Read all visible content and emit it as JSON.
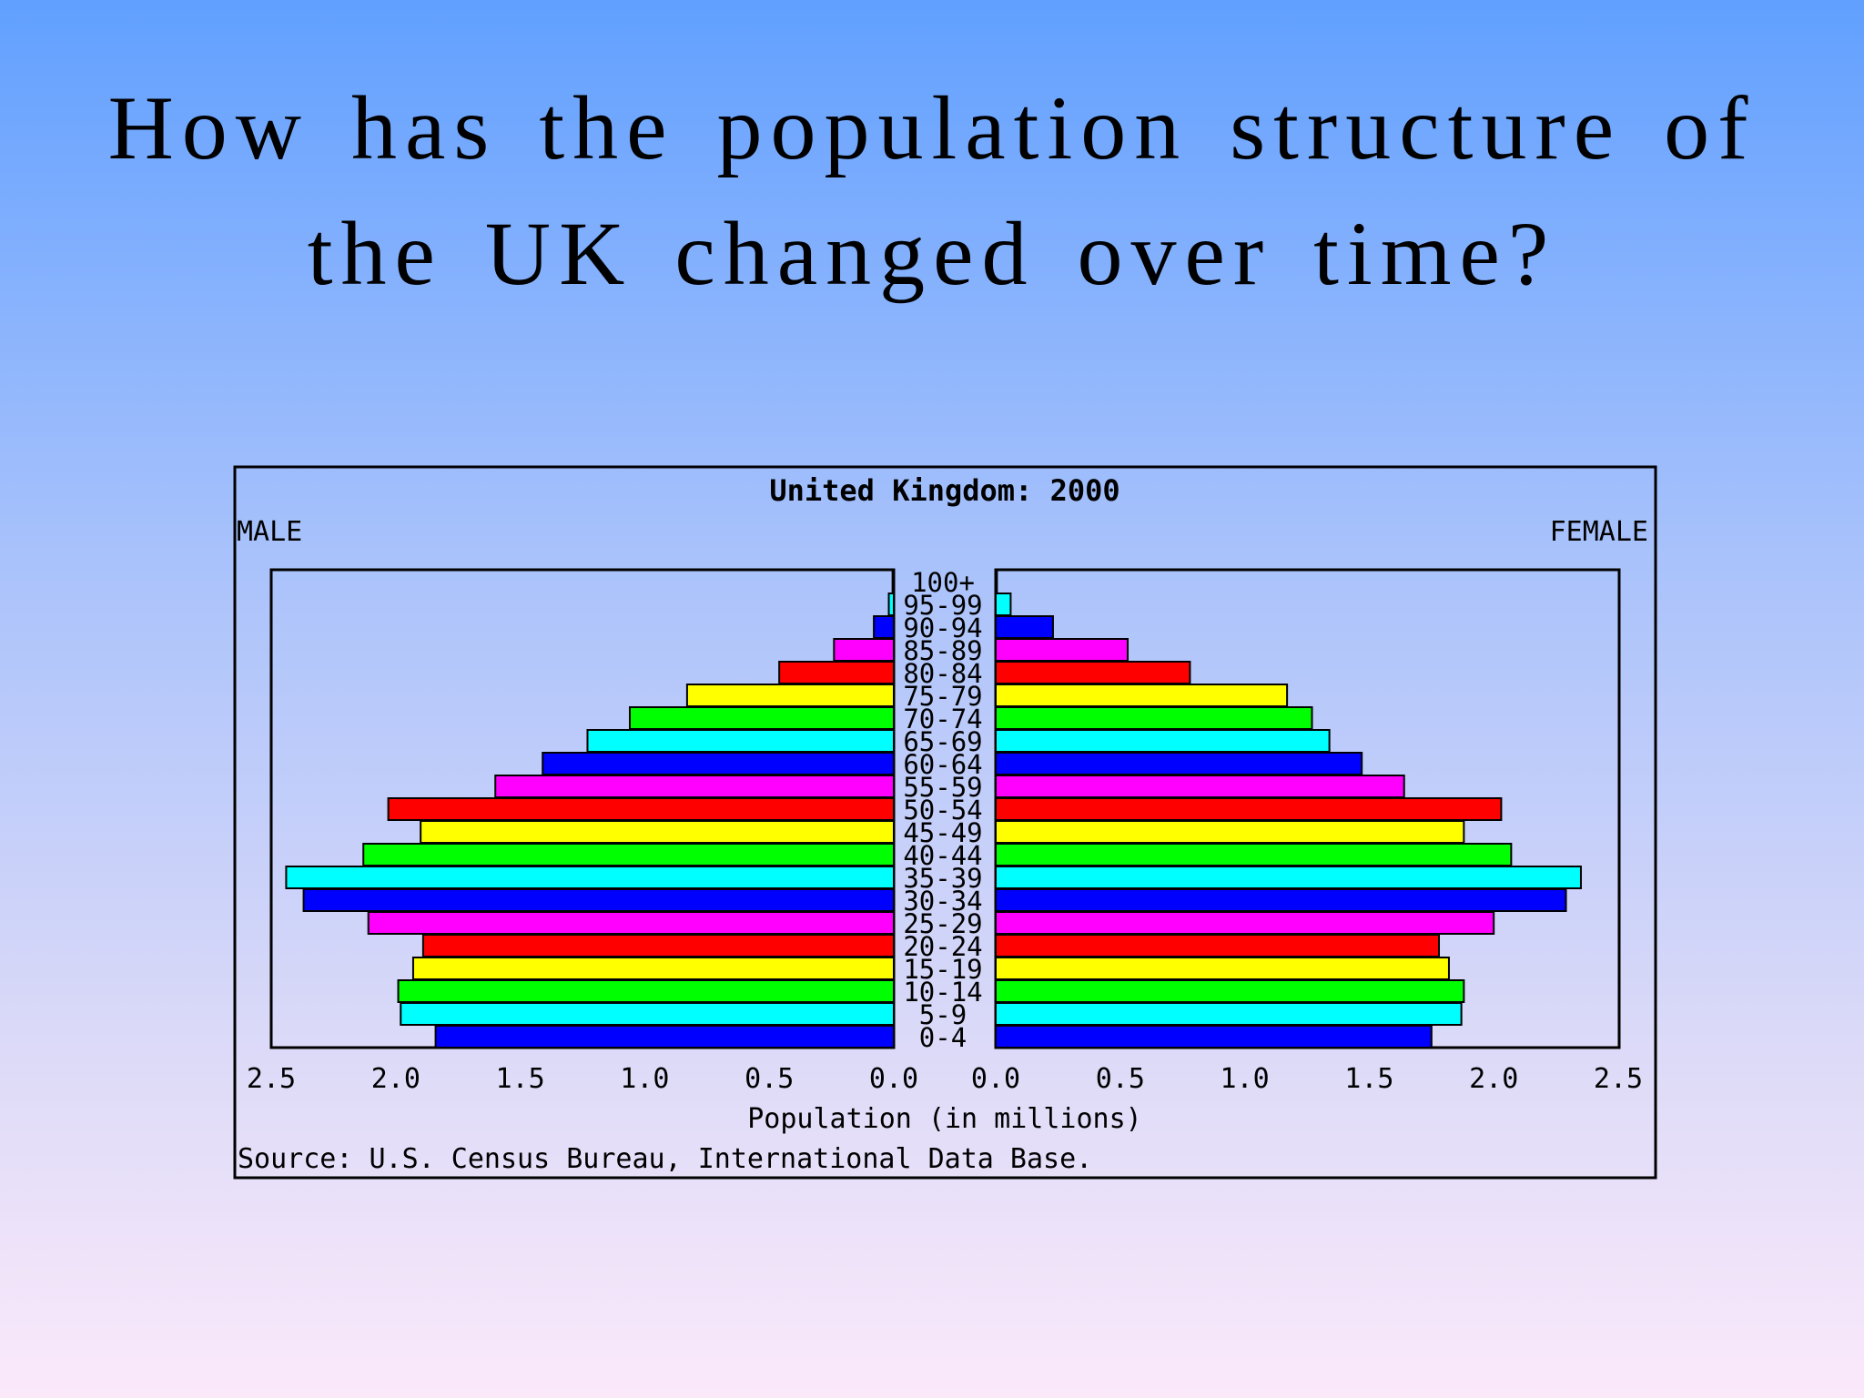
{
  "slide": {
    "title_line1": "How has the population structure of",
    "title_line2": "the UK changed over time?"
  },
  "chart_data": {
    "type": "bar",
    "title": "United Kingdom: 2000",
    "left_label": "MALE",
    "right_label": "FEMALE",
    "xlabel": "Population (in millions)",
    "source": "Source: U.S. Census Bureau, International Data Base.",
    "xlim": [
      0,
      2.5
    ],
    "x_ticks": [
      "2.5",
      "2.0",
      "1.5",
      "1.0",
      "0.5",
      "0.0"
    ],
    "x_ticks_right": [
      "0.0",
      "0.5",
      "1.0",
      "1.5",
      "2.0",
      "2.5"
    ],
    "categories": [
      "100+",
      "95-99",
      "90-94",
      "85-89",
      "80-84",
      "75-79",
      "70-74",
      "65-69",
      "60-64",
      "55-59",
      "50-54",
      "45-49",
      "40-44",
      "35-39",
      "30-34",
      "25-29",
      "20-24",
      "15-19",
      "10-14",
      "5-9",
      "0-4"
    ],
    "series": [
      {
        "name": "MALE",
        "values": [
          0.005,
          0.02,
          0.08,
          0.24,
          0.46,
          0.83,
          1.06,
          1.23,
          1.41,
          1.6,
          2.03,
          1.9,
          2.13,
          2.44,
          2.37,
          2.11,
          1.89,
          1.93,
          1.99,
          1.98,
          1.84
        ]
      },
      {
        "name": "FEMALE",
        "values": [
          0.005,
          0.06,
          0.23,
          0.53,
          0.78,
          1.17,
          1.27,
          1.34,
          1.47,
          1.64,
          2.03,
          1.88,
          2.07,
          2.35,
          2.29,
          2.0,
          1.78,
          1.82,
          1.88,
          1.87,
          1.75
        ]
      }
    ],
    "bar_colors": [
      "#0000ff",
      "#00ffff",
      "#0000ff",
      "#ff00ff",
      "#ff0000",
      "#ffff00",
      "#00ff00",
      "#00ffff",
      "#0000ff",
      "#ff00ff",
      "#ff0000",
      "#ffff00",
      "#00ff00",
      "#00ffff",
      "#0000ff",
      "#ff00ff",
      "#ff0000",
      "#ffff00",
      "#00ff00",
      "#00ffff",
      "#0000ff"
    ],
    "grid": false,
    "legend": "none"
  }
}
